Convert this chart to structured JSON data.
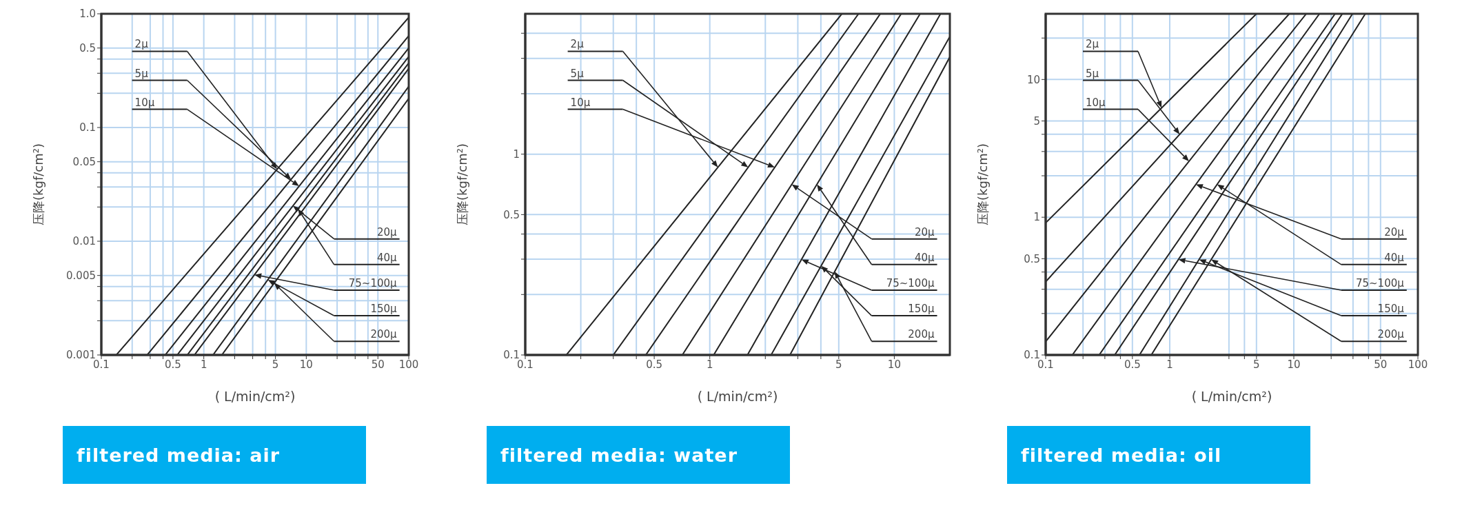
{
  "chart_data": [
    {
      "type": "line",
      "title": "filtered media: air",
      "xlabel": "( L/min/cm²)",
      "ylabel": "压降(kgf/cm²)",
      "log": "xy",
      "grid": true,
      "xlim": [
        0.1,
        100
      ],
      "ylim": [
        0.001,
        1
      ],
      "xticks": [
        0.1,
        {
          "value": 0.2,
          "label": null
        },
        {
          "value": 0.3,
          "label": null
        },
        {
          "value": 0.4,
          "label": null
        },
        0.5,
        1,
        {
          "value": 2,
          "label": null
        },
        {
          "value": 3,
          "label": null
        },
        {
          "value": 4,
          "label": null
        },
        5,
        10,
        {
          "value": 20,
          "label": null
        },
        {
          "value": 30,
          "label": null
        },
        {
          "value": 40,
          "label": null
        },
        50,
        100
      ],
      "yticks": [
        0.001,
        {
          "value": 0.002,
          "label": null
        },
        {
          "value": 0.003,
          "label": null
        },
        {
          "value": 0.004,
          "label": null
        },
        0.005,
        0.01,
        {
          "value": 0.02,
          "label": null
        },
        {
          "value": 0.03,
          "label": null
        },
        {
          "value": 0.04,
          "label": null
        },
        0.05,
        0.1,
        {
          "value": 0.2,
          "label": null
        },
        {
          "value": 0.3,
          "label": null
        },
        {
          "value": 0.4,
          "label": null
        },
        0.5,
        {
          "value": 1,
          "label": "1.0"
        }
      ],
      "series": [
        {
          "color": "#222222",
          "x": [
            0.14,
            100
          ],
          "values": [
            0.001,
            0.93
          ]
        },
        {
          "color": "#222222",
          "x": [
            0.28,
            100
          ],
          "values": [
            0.001,
            0.64
          ]
        },
        {
          "color": "#222222",
          "x": [
            0.42,
            100
          ],
          "values": [
            0.001,
            0.5
          ]
        },
        {
          "color": "#222222",
          "x": [
            0.55,
            100
          ],
          "values": [
            0.001,
            0.42
          ]
        },
        {
          "color": "#222222",
          "x": [
            0.69,
            100
          ],
          "values": [
            0.001,
            0.37
          ]
        },
        {
          "color": "#222222",
          "x": [
            0.81,
            100
          ],
          "values": [
            0.001,
            0.33
          ]
        },
        {
          "color": "#222222",
          "x": [
            1.23,
            100
          ],
          "values": [
            0.001,
            0.23
          ]
        },
        {
          "color": "#222222",
          "x": [
            1.5,
            100
          ],
          "values": [
            0.001,
            0.18
          ]
        }
      ],
      "annotations": [
        "2μ",
        "5μ",
        "10μ",
        "20μ",
        "40μ",
        "75~100μ",
        "150μ",
        "200μ"
      ]
    },
    {
      "type": "line",
      "title": "filtered media: water",
      "xlabel": "( L/min/cm²)",
      "ylabel": "压降(kgf/cm²)",
      "log": "xy",
      "grid": true,
      "xlim": [
        0.1,
        20
      ],
      "ylim": [
        0.1,
        5
      ],
      "xticks": [
        0.1,
        {
          "value": 0.2,
          "label": null
        },
        {
          "value": 0.3,
          "label": null
        },
        {
          "value": 0.4,
          "label": null
        },
        0.5,
        1,
        {
          "value": 2,
          "label": null
        },
        {
          "value": 3,
          "label": null
        },
        {
          "value": 4,
          "label": null
        },
        5,
        10
      ],
      "yticks": [
        0.1,
        {
          "value": 0.2,
          "label": null
        },
        {
          "value": 0.3,
          "label": null
        },
        {
          "value": 0.4,
          "label": null
        },
        0.5,
        1,
        {
          "value": 2,
          "label": null
        },
        {
          "value": 3,
          "label": null
        },
        {
          "value": 4,
          "label": null
        }
      ],
      "series": [
        {
          "color": "#222222",
          "x": [
            0.167,
            5.2
          ],
          "values": [
            0.1,
            5
          ]
        },
        {
          "color": "#222222",
          "x": [
            0.3,
            6.4
          ],
          "values": [
            0.1,
            5
          ]
        },
        {
          "color": "#222222",
          "x": [
            0.45,
            8.4
          ],
          "values": [
            0.1,
            5
          ]
        },
        {
          "color": "#222222",
          "x": [
            0.71,
            10.9
          ],
          "values": [
            0.1,
            5
          ]
        },
        {
          "color": "#222222",
          "x": [
            1.05,
            13.8
          ],
          "values": [
            0.1,
            5
          ]
        },
        {
          "color": "#222222",
          "x": [
            1.6,
            17.8
          ],
          "values": [
            0.1,
            5
          ]
        },
        {
          "color": "#222222",
          "x": [
            2.15,
            20
          ],
          "values": [
            0.1,
            3.85
          ]
        },
        {
          "color": "#222222",
          "x": [
            2.72,
            20
          ],
          "values": [
            0.1,
            3.05
          ]
        }
      ],
      "annotations": [
        "2μ",
        "5μ",
        "10μ",
        "20μ",
        "40μ",
        "75~100μ",
        "150μ",
        "200μ"
      ]
    },
    {
      "type": "line",
      "title": "filtered media: oil",
      "xlabel": "( L/min/cm²)",
      "ylabel": "压降(kgf/cm²)",
      "log": "xy",
      "grid": true,
      "xlim": [
        0.1,
        100
      ],
      "ylim": [
        0.1,
        30
      ],
      "xticks": [
        0.1,
        {
          "value": 0.2,
          "label": null
        },
        {
          "value": 0.3,
          "label": null
        },
        {
          "value": 0.4,
          "label": null
        },
        0.5,
        1,
        {
          "value": 3,
          "label": null
        },
        {
          "value": 4,
          "label": null
        },
        5,
        10,
        {
          "value": 20,
          "label": null
        },
        {
          "value": 30,
          "label": null
        },
        {
          "value": 40,
          "label": null
        },
        50,
        100
      ],
      "yticks": [
        0.1,
        {
          "value": 0.2,
          "label": null
        },
        {
          "value": 0.3,
          "label": null
        },
        {
          "value": 0.4,
          "label": null
        },
        0.5,
        1,
        {
          "value": 2,
          "label": null
        },
        {
          "value": 3,
          "label": null
        },
        {
          "value": 4,
          "label": null
        },
        5,
        10,
        {
          "value": 20,
          "label": null
        }
      ],
      "series": [
        {
          "color": "#222222",
          "x": [
            0.1,
            5
          ],
          "values": [
            0.91,
            30
          ]
        },
        {
          "color": "#222222",
          "x": [
            0.1,
            9.2
          ],
          "values": [
            0.34,
            30
          ]
        },
        {
          "color": "#222222",
          "x": [
            0.1,
            12.6
          ],
          "values": [
            0.125,
            30
          ]
        },
        {
          "color": "#222222",
          "x": [
            0.164,
            16.1
          ],
          "values": [
            0.1,
            30
          ]
        },
        {
          "color": "#222222",
          "x": [
            0.27,
            21.5
          ],
          "values": [
            0.1,
            30
          ]
        },
        {
          "color": "#222222",
          "x": [
            0.36,
            24.6
          ],
          "values": [
            0.1,
            30
          ]
        },
        {
          "color": "#222222",
          "x": [
            0.57,
            29.7
          ],
          "values": [
            0.1,
            30
          ]
        },
        {
          "color": "#222222",
          "x": [
            0.71,
            37.7
          ],
          "values": [
            0.1,
            30
          ]
        }
      ],
      "annotations": [
        "2μ",
        "5μ",
        "10μ",
        "20μ",
        "40μ",
        "75~100μ",
        "150μ",
        "200μ"
      ]
    }
  ]
}
